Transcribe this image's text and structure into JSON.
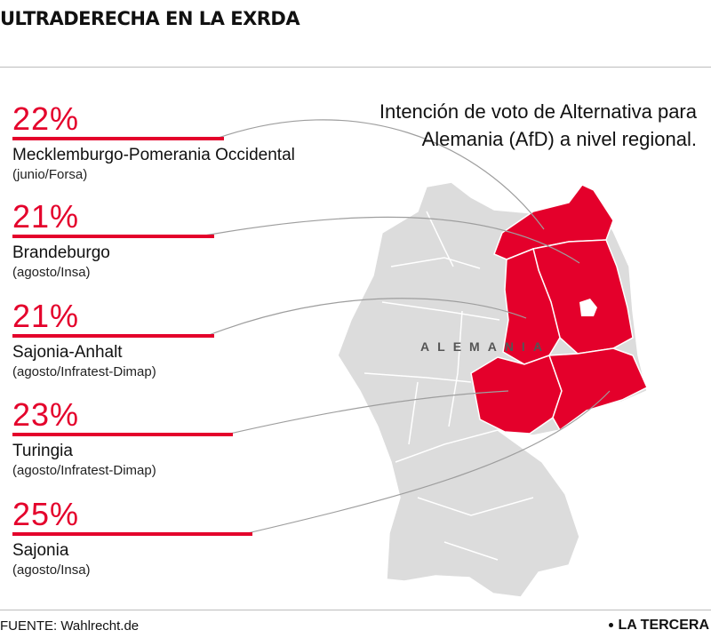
{
  "header": {
    "title": "ULTRADERECHA EN LA EXRDA"
  },
  "subtitle": "Intención de voto de Alternativa para Alemania (AfD) a nivel regional.",
  "map": {
    "country_label": "ALEMANIA",
    "highlight_color": "#e4002b",
    "base_color": "#dcdcdc"
  },
  "chart_data": {
    "type": "bar",
    "categories": [
      "Mecklemburgo-Pomerania Occidental",
      "Brandeburgo",
      "Sajonia-Anhalt",
      "Turingia",
      "Sajonia"
    ],
    "values": [
      22,
      21,
      21,
      23,
      25
    ],
    "value_labels": [
      "22%",
      "21%",
      "21%",
      "23%",
      "25%"
    ],
    "sources": [
      "(junio/Forsa)",
      "(agosto/Insa)",
      "(agosto/Infratest-Dimap)",
      "(agosto/Infratest-Dimap)",
      " (agosto/Insa)"
    ],
    "unit": "%",
    "color": "#e4002b"
  },
  "footer": {
    "source": "FUENTE: Wahlrecht.de",
    "brand": "LA TERCERA"
  }
}
